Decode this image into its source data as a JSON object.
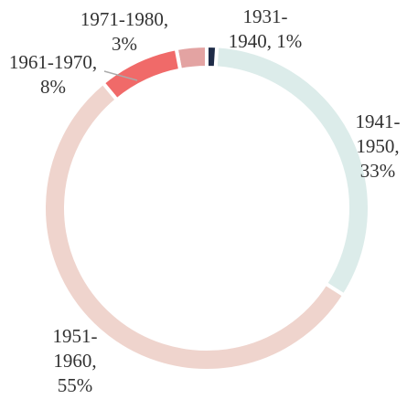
{
  "chart_data": {
    "type": "donut",
    "categories": [
      "1931-1940",
      "1941-1950",
      "1951-1960",
      "1961-1970",
      "1971-1980"
    ],
    "values": [
      1,
      33,
      55,
      8,
      3
    ],
    "value_labels": [
      "1%",
      "33%",
      "55%",
      "8%",
      "3%"
    ],
    "colors": [
      "#1e2b47",
      "#dcecea",
      "#efd4cd",
      "#f06a69",
      "#e3a3a2"
    ]
  }
}
